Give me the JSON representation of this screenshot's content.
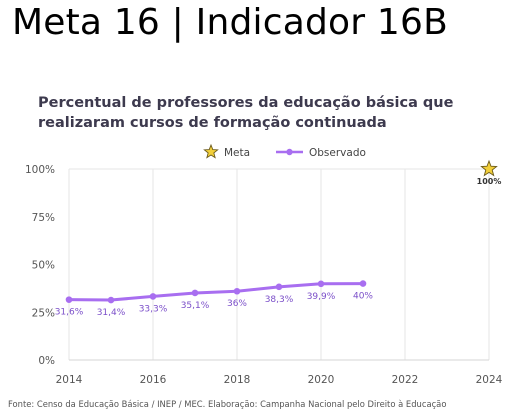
{
  "slide": {
    "title": "Meta 16 | Indicador 16B"
  },
  "source_note": "Fonte: Censo da Educação Básica / INEP / MEC. Elaboração: Campanha Nacional pelo Direito à Educação",
  "chart_data": {
    "type": "line",
    "title_lines": [
      "Percentual de professores da educação básica que",
      "realizaram cursos de formação continuada"
    ],
    "x": [
      2014,
      2015,
      2016,
      2017,
      2018,
      2019,
      2020,
      2021
    ],
    "x_ticks": [
      "2014",
      "2016",
      "2018",
      "2020",
      "2022",
      "2024"
    ],
    "x_range": [
      2014,
      2024
    ],
    "y_ticks": [
      "0%",
      "25%",
      "50%",
      "75%",
      "100%"
    ],
    "y_range": [
      0,
      100
    ],
    "grid": "vertical",
    "legend": {
      "placement": "top",
      "items": [
        "Meta",
        "Observado"
      ]
    },
    "series": [
      {
        "name": "Observado",
        "color": "#a86ef0",
        "values": [
          31.6,
          31.4,
          33.3,
          35.1,
          36,
          38.3,
          39.9,
          40
        ],
        "labels": [
          "31,6%",
          "31,4%",
          "33,3%",
          "35,1%",
          "36%",
          "38,3%",
          "39,9%",
          "40%"
        ]
      }
    ],
    "target": {
      "name": "Meta",
      "x": 2024,
      "value": 100,
      "label": "100%",
      "color": "#f2cf3a"
    }
  }
}
